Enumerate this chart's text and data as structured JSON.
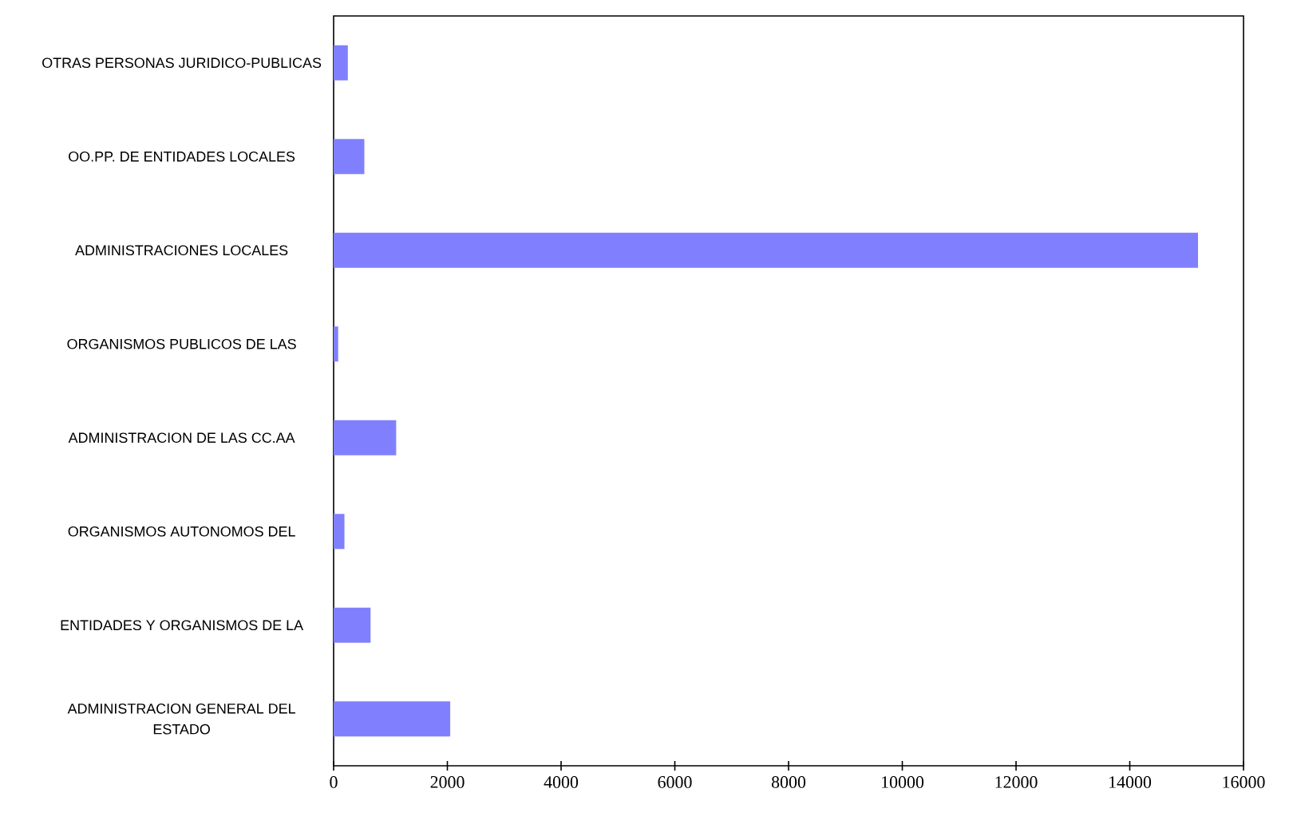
{
  "chart_data": {
    "type": "bar",
    "orientation": "horizontal",
    "color": "#8080ff",
    "categories": [
      "OTRAS PERSONAS JURIDICO-PUBLICAS",
      "OO.PP. DE ENTIDADES LOCALES",
      "ADMINISTRACIONES LOCALES",
      "ORGANISMOS PUBLICOS DE LAS",
      "ADMINISTRACION DE LAS CC.AA",
      "ORGANISMOS AUTONOMOS DEL",
      "ENTIDADES Y ORGANISMOS DE LA",
      "ADMINISTRACION GENERAL DEL ESTADO"
    ],
    "values": [
      250,
      540,
      15200,
      80,
      1100,
      190,
      650,
      2050
    ],
    "xlim": [
      0,
      16000
    ],
    "xticks": [
      0,
      2000,
      4000,
      6000,
      8000,
      10000,
      12000,
      14000,
      16000
    ],
    "grid": false
  }
}
